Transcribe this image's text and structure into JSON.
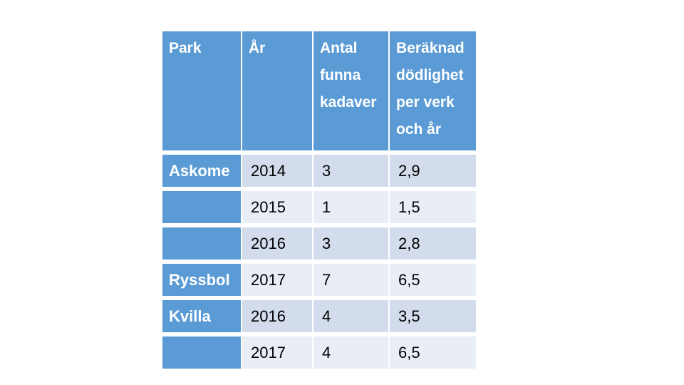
{
  "table": {
    "headers": [
      "Park",
      "År",
      "Antal funna kadaver",
      "Beräknad dödlighet per verk och år"
    ],
    "rows": [
      {
        "park": "Askome",
        "year": "2014",
        "carcasses": "3",
        "mortality": "2,9"
      },
      {
        "park": "",
        "year": "2015",
        "carcasses": "1",
        "mortality": "1,5"
      },
      {
        "park": "",
        "year": "2016",
        "carcasses": "3",
        "mortality": "2,8"
      },
      {
        "park": "Ryssbol",
        "year": "2017",
        "carcasses": "7",
        "mortality": "6,5"
      },
      {
        "park": "Kvilla",
        "year": "2016",
        "carcasses": "4",
        "mortality": "3,5"
      },
      {
        "park": "",
        "year": "2017",
        "carcasses": "4",
        "mortality": "6,5"
      }
    ],
    "colors": {
      "header_blue": "#5B9BD5",
      "header_text": "#FFFFFF",
      "band_dark": "#D3DCEC",
      "band_light": "#E9EDF5",
      "data_text": "#000000",
      "gridline": "#FFFFFF",
      "background": "#FFFFFF"
    }
  },
  "chart_data": {
    "type": "table",
    "title": "",
    "columns": [
      "Park",
      "År",
      "Antal funna kadaver",
      "Beräknad dödlighet per verk och år"
    ],
    "rows": [
      [
        "Askome",
        2014,
        3,
        2.9
      ],
      [
        "",
        2015,
        1,
        1.5
      ],
      [
        "",
        2016,
        3,
        2.8
      ],
      [
        "Ryssbol",
        2017,
        7,
        6.5
      ],
      [
        "Kvilla",
        2016,
        4,
        3.5
      ],
      [
        "",
        2017,
        4,
        6.5
      ]
    ],
    "notes": "Decimal values displayed with comma (Swedish locale); blank park cells continue the park named above"
  }
}
